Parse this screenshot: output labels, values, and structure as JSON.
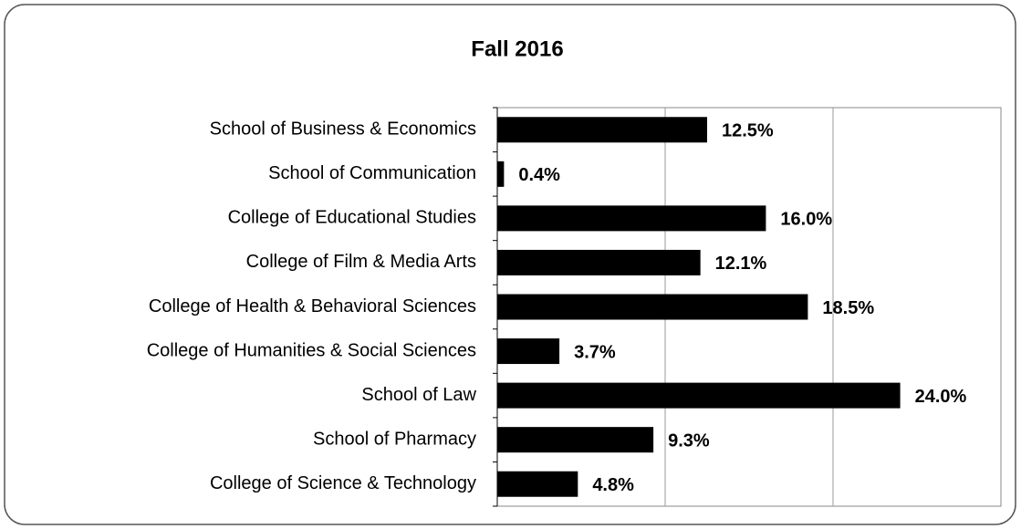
{
  "chart_data": {
    "type": "bar",
    "orientation": "horizontal",
    "title": "Fall 2016",
    "categories": [
      "School of Business & Economics",
      "School of Communication",
      "College of Educational Studies",
      "College of Film & Media Arts",
      "College of Health & Behavioral Sciences",
      "College of Humanities & Social Sciences",
      "School of Law",
      "School of Pharmacy",
      "College of Science & Technology"
    ],
    "values": [
      12.5,
      0.4,
      16.0,
      12.1,
      18.5,
      3.7,
      24.0,
      9.3,
      4.8
    ],
    "value_labels": [
      "12.5%",
      "0.4%",
      "16.0%",
      "12.1%",
      "18.5%",
      "3.7%",
      "24.0%",
      "9.3%",
      "4.8%"
    ],
    "color": "#000000",
    "xlim": [
      0,
      30
    ],
    "xticks": [
      10,
      20
    ],
    "grid": true
  }
}
